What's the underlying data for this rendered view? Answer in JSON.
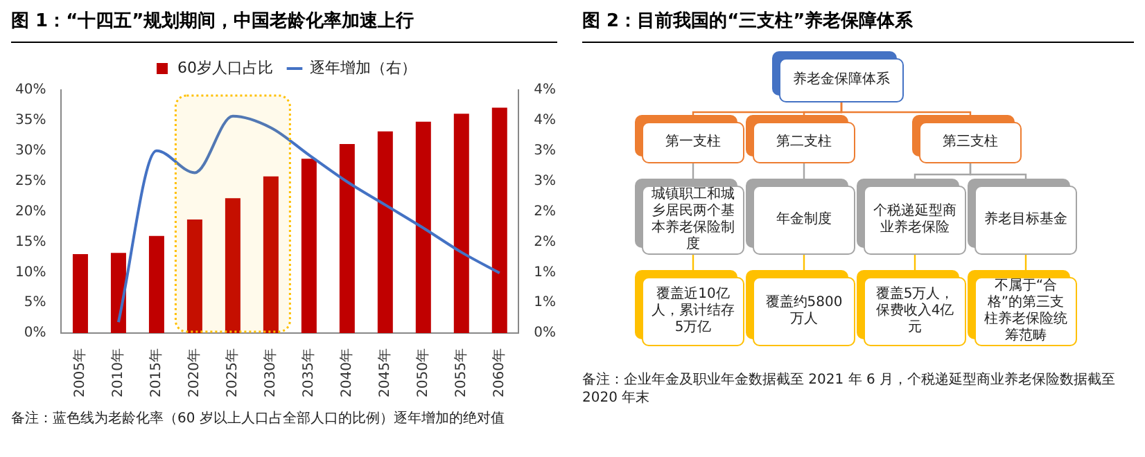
{
  "chart_data": [
    {
      "type": "bar",
      "title": "图 1：“十四五”规划期间，中国老龄化率加速上行",
      "categories": [
        "2005年",
        "2010年",
        "2015年",
        "2020年",
        "2025年",
        "2030年",
        "2035年",
        "2040年",
        "2045年",
        "2050年",
        "2055年",
        "2060年"
      ],
      "series": [
        {
          "name": "60岁人口占比",
          "color": "#c00000",
          "values": [
            13,
            13.2,
            16,
            18.7,
            22.2,
            25.8,
            28.7,
            31.1,
            33.2,
            34.8,
            36.1,
            37.1
          ]
        },
        {
          "name": "逐年增加（右）",
          "type": "line",
          "axis": "y2",
          "color": "#4472c4",
          "values": [
            null,
            0.18,
            3.0,
            2.64,
            3.57,
            3.38,
            2.93,
            2.49,
            2.11,
            1.73,
            1.33,
            0.99
          ]
        }
      ],
      "ylim": [
        0,
        40
      ],
      "yticks": [
        {
          "value": 0,
          "label": "0%"
        },
        {
          "value": 5,
          "label": "5%"
        },
        {
          "value": 10,
          "label": "10%"
        },
        {
          "value": 15,
          "label": "15%"
        },
        {
          "value": 20,
          "label": "20%"
        },
        {
          "value": 25,
          "label": "25%"
        },
        {
          "value": 30,
          "label": "30%"
        },
        {
          "value": 35,
          "label": "35%"
        },
        {
          "value": 40,
          "label": "40%"
        }
      ],
      "y2lim": [
        0,
        4
      ],
      "y2ticks": [
        {
          "value": 0,
          "label": "0%"
        },
        {
          "value": 0.5,
          "label": "1%"
        },
        {
          "value": 1,
          "label": "1%"
        },
        {
          "value": 1.5,
          "label": "2%"
        },
        {
          "value": 2,
          "label": "2%"
        },
        {
          "value": 2.5,
          "label": "3%"
        },
        {
          "value": 3,
          "label": "3%"
        },
        {
          "value": 3.5,
          "label": "4%"
        },
        {
          "value": 4,
          "label": "4%"
        }
      ],
      "bands": [
        {
          "axis": "x",
          "from": "2020年",
          "to": "2030年",
          "color": "#ffc000"
        }
      ],
      "legend": "top",
      "grid": false,
      "annotations": [
        "备注：蓝色线为老龄化率（60 岁以上人口占全部人口的比例）逐年增加的绝对值"
      ]
    },
    {
      "type": "other",
      "title": "图 2：目前我国的“三支柱”养老保障体系",
      "categories": [
        "养老金保障体系",
        "第一支柱",
        "第二支柱",
        "第三支柱",
        "城镇职工和城乡居民两个基本养老保险制度",
        "年金制度",
        "个税递延型商业养老保险",
        "养老目标基金",
        "覆盖近10亿人，累计结存5万亿",
        "覆盖约5800万人",
        "覆盖5万人，保费收入4亿元",
        "不属于“合格”的第三支柱养老保险统筹范畴"
      ],
      "colors": [
        "#4472c4",
        "#ed7d31",
        "#ed7d31",
        "#ed7d31",
        "#a5a5a5",
        "#a5a5a5",
        "#a5a5a5",
        "#a5a5a5",
        "#ffc000",
        "#ffc000",
        "#ffc000",
        "#ffc000"
      ],
      "annotations": [
        "备注：企业年金及职业年金数据截至 2021 年 6 月，个税递延型商业养老保险数据截至 2020 年末"
      ]
    }
  ]
}
